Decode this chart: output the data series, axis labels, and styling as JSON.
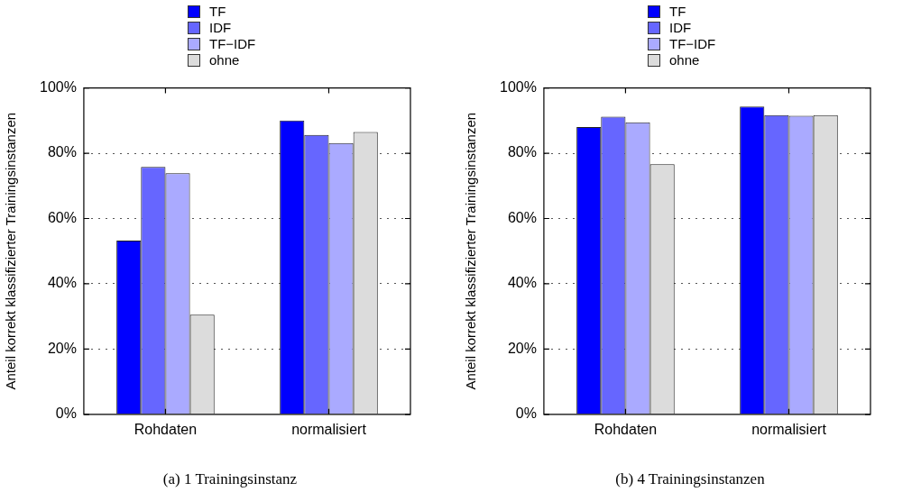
{
  "chart_data": [
    {
      "type": "bar",
      "categories": [
        "Rohdaten",
        "normalisiert"
      ],
      "ylabel": "Anteil korrekt klassifizierter Trainingsinstanzen",
      "series": [
        {
          "name": "TF",
          "color": "#0000ff",
          "values": [
            53.2,
            90.0
          ]
        },
        {
          "name": "IDF",
          "color": "#6666ff",
          "values": [
            75.8,
            85.6
          ]
        },
        {
          "name": "TF−IDF",
          "color": "#aaaaff",
          "values": [
            73.9,
            83.1
          ]
        },
        {
          "name": "ohne",
          "color": "#dcdcdc",
          "values": [
            30.5,
            86.5
          ]
        }
      ],
      "ylim": [
        0,
        100
      ],
      "yticks": [
        {
          "value": 0,
          "label": "0%"
        },
        {
          "value": 20,
          "label": "20%"
        },
        {
          "value": 40,
          "label": "40%"
        },
        {
          "value": 60,
          "label": "60%"
        },
        {
          "value": 80,
          "label": "80%"
        },
        {
          "value": 100,
          "label": "100%"
        }
      ],
      "grid": "y",
      "legend": "top",
      "annotations": [
        "(a) 1 Trainingsinstanz"
      ]
    },
    {
      "type": "bar",
      "categories": [
        "Rohdaten",
        "normalisiert"
      ],
      "ylabel": "Anteil korrekt klassifizierter Trainingsinstanzen",
      "series": [
        {
          "name": "TF",
          "color": "#0000ff",
          "values": [
            88.0,
            94.3
          ]
        },
        {
          "name": "IDF",
          "color": "#6666ff",
          "values": [
            91.2,
            91.7
          ]
        },
        {
          "name": "TF−IDF",
          "color": "#aaaaff",
          "values": [
            89.5,
            91.5
          ]
        },
        {
          "name": "ohne",
          "color": "#dcdcdc",
          "values": [
            76.6,
            91.7
          ]
        }
      ],
      "ylim": [
        0,
        100
      ],
      "yticks": [
        {
          "value": 0,
          "label": "0%"
        },
        {
          "value": 20,
          "label": "20%"
        },
        {
          "value": 40,
          "label": "40%"
        },
        {
          "value": 60,
          "label": "60%"
        },
        {
          "value": 80,
          "label": "80%"
        },
        {
          "value": 100,
          "label": "100%"
        }
      ],
      "grid": "y",
      "legend": "top",
      "annotations": [
        "(b) 4 Trainingsinstanzen"
      ]
    }
  ]
}
